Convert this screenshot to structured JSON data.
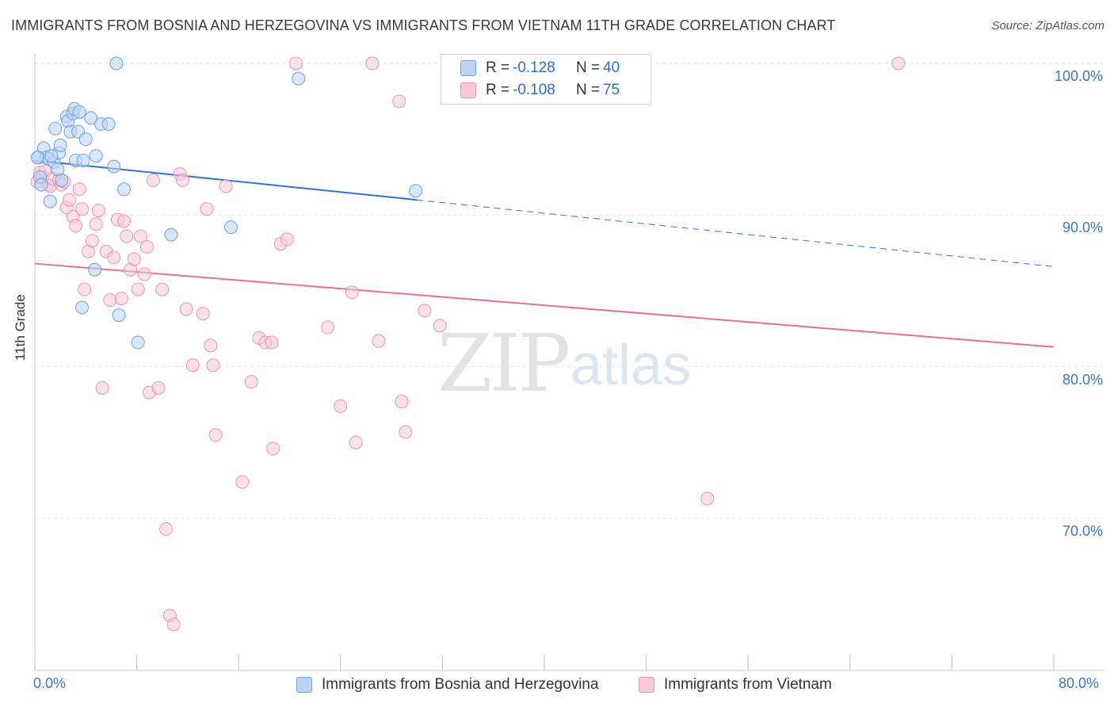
{
  "title": "IMMIGRANTS FROM BOSNIA AND HERZEGOVINA VS IMMIGRANTS FROM VIETNAM 11TH GRADE CORRELATION CHART",
  "source": "Source: ZipAtlas.com",
  "watermark": {
    "zip": "ZIP",
    "atlas": "atlas"
  },
  "legend": {
    "rows": [
      {
        "r_label": "R =",
        "r_value": "-0.128",
        "n_label": "N =",
        "n_value": "40"
      },
      {
        "r_label": "R =",
        "r_value": "-0.108",
        "n_label": "N =",
        "n_value": "75"
      }
    ]
  },
  "colors": {
    "bosnia_fill": "#bcd5f5",
    "bosnia_stroke": "#6f9fe0",
    "bosnia_line": "#2f72d0",
    "vietnam_fill": "#f9c9d8",
    "vietnam_stroke": "#eb92ae",
    "vietnam_line": "#e2709a",
    "grid": "#e3e3e3",
    "tick_text": "#3b73c8"
  },
  "chart_data": {
    "type": "scatter",
    "title": "IMMIGRANTS FROM BOSNIA AND HERZEGOVINA VS IMMIGRANTS FROM VIETNAM 11TH GRADE CORRELATION CHART",
    "xlabel": "",
    "ylabel": "11th Grade",
    "xlim": [
      0,
      80
    ],
    "ylim": [
      63,
      101.5
    ],
    "x_tick_labels": [
      "0.0%",
      "80.0%"
    ],
    "y_ticks": [
      70,
      80,
      90,
      100
    ],
    "y_tick_labels": [
      "70.0%",
      "80.0%",
      "90.0%",
      "100.0%"
    ],
    "grid": true,
    "legend_position": "top-center",
    "series": [
      {
        "name": "Immigrants from Bosnia and Herzegovina",
        "points": [
          [
            0.3,
            93.8
          ],
          [
            0.4,
            92.5
          ],
          [
            0.5,
            92.0
          ],
          [
            0.7,
            94.4
          ],
          [
            0.9,
            93.8
          ],
          [
            1.1,
            93.7
          ],
          [
            1.2,
            90.9
          ],
          [
            1.5,
            93.5
          ],
          [
            1.6,
            95.7
          ],
          [
            1.8,
            93.0
          ],
          [
            1.9,
            94.1
          ],
          [
            2.0,
            94.6
          ],
          [
            2.1,
            92.3
          ],
          [
            2.5,
            96.5
          ],
          [
            2.6,
            96.2
          ],
          [
            2.8,
            95.5
          ],
          [
            3.0,
            96.7
          ],
          [
            3.1,
            97.0
          ],
          [
            3.2,
            93.6
          ],
          [
            3.4,
            95.5
          ],
          [
            3.5,
            96.8
          ],
          [
            3.7,
            83.9
          ],
          [
            3.8,
            93.6
          ],
          [
            4.0,
            95.0
          ],
          [
            4.4,
            96.4
          ],
          [
            4.7,
            86.4
          ],
          [
            4.8,
            93.9
          ],
          [
            5.2,
            96.0
          ],
          [
            5.8,
            96.0
          ],
          [
            6.2,
            93.2
          ],
          [
            6.4,
            100.0
          ],
          [
            6.6,
            83.4
          ],
          [
            7.0,
            91.7
          ],
          [
            8.1,
            81.6
          ],
          [
            10.7,
            88.7
          ],
          [
            15.4,
            89.2
          ],
          [
            20.7,
            99.0
          ],
          [
            29.9,
            91.6
          ],
          [
            0.2,
            93.8
          ],
          [
            1.3,
            93.9
          ]
        ]
      },
      {
        "name": "Immigrants from Vietnam",
        "points": [
          [
            0.2,
            92.2
          ],
          [
            0.4,
            92.8
          ],
          [
            0.6,
            92.5
          ],
          [
            0.8,
            92.9
          ],
          [
            1.0,
            92.0
          ],
          [
            1.2,
            91.9
          ],
          [
            1.4,
            92.4
          ],
          [
            1.9,
            92.3
          ],
          [
            2.1,
            92.0
          ],
          [
            2.3,
            92.2
          ],
          [
            2.5,
            90.5
          ],
          [
            2.7,
            91.0
          ],
          [
            3.0,
            89.9
          ],
          [
            3.2,
            89.3
          ],
          [
            3.5,
            91.7
          ],
          [
            3.7,
            90.4
          ],
          [
            3.9,
            85.1
          ],
          [
            4.2,
            87.6
          ],
          [
            4.5,
            88.3
          ],
          [
            4.8,
            89.4
          ],
          [
            5.0,
            90.3
          ],
          [
            5.3,
            78.6
          ],
          [
            5.6,
            87.6
          ],
          [
            5.9,
            84.4
          ],
          [
            6.2,
            87.2
          ],
          [
            6.5,
            89.7
          ],
          [
            6.8,
            84.5
          ],
          [
            7.0,
            89.6
          ],
          [
            7.2,
            88.6
          ],
          [
            7.5,
            86.4
          ],
          [
            7.8,
            87.1
          ],
          [
            8.1,
            85.1
          ],
          [
            8.3,
            88.6
          ],
          [
            8.6,
            86.1
          ],
          [
            8.8,
            87.9
          ],
          [
            9.0,
            78.3
          ],
          [
            9.3,
            92.3
          ],
          [
            9.7,
            78.6
          ],
          [
            10.0,
            85.1
          ],
          [
            10.3,
            69.3
          ],
          [
            10.6,
            63.6
          ],
          [
            10.9,
            63.0
          ],
          [
            11.4,
            92.7
          ],
          [
            11.6,
            92.3
          ],
          [
            11.9,
            83.8
          ],
          [
            12.4,
            80.1
          ],
          [
            13.2,
            83.5
          ],
          [
            13.5,
            90.4
          ],
          [
            13.8,
            81.4
          ],
          [
            14.0,
            80.1
          ],
          [
            14.2,
            75.5
          ],
          [
            15.0,
            91.9
          ],
          [
            16.3,
            72.4
          ],
          [
            17.0,
            79.0
          ],
          [
            17.6,
            81.9
          ],
          [
            18.1,
            81.6
          ],
          [
            18.6,
            81.6
          ],
          [
            18.7,
            74.6
          ],
          [
            19.3,
            88.1
          ],
          [
            19.8,
            88.4
          ],
          [
            20.5,
            100.0
          ],
          [
            23.0,
            82.6
          ],
          [
            24.0,
            77.4
          ],
          [
            24.9,
            84.9
          ],
          [
            25.2,
            75.0
          ],
          [
            26.5,
            100.0
          ],
          [
            27.0,
            81.7
          ],
          [
            28.6,
            97.5
          ],
          [
            28.8,
            77.7
          ],
          [
            29.1,
            75.7
          ],
          [
            30.6,
            83.7
          ],
          [
            31.8,
            82.7
          ],
          [
            34.6,
            100.0
          ],
          [
            52.8,
            71.3
          ],
          [
            67.8,
            100.0
          ]
        ]
      }
    ],
    "trend_lines": [
      {
        "series": "Immigrants from Bosnia and Herzegovina",
        "x": [
          0,
          30,
          80
        ],
        "y": [
          93.6,
          91.0,
          86.6
        ],
        "dashed_after": 30
      },
      {
        "series": "Immigrants from Vietnam",
        "x": [
          0,
          80
        ],
        "y": [
          86.8,
          81.3
        ]
      }
    ]
  }
}
